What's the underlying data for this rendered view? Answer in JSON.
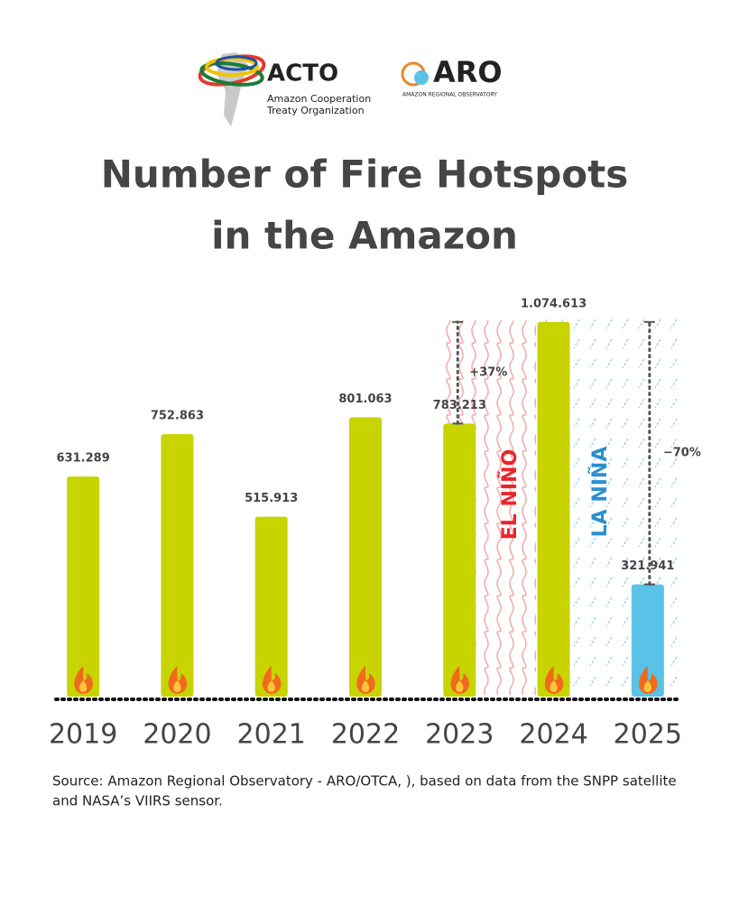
{
  "header": {
    "logo1": {
      "name": "ACTO",
      "subtitle1": "Amazon Cooperation",
      "subtitle2": "Treaty Organization"
    },
    "logo2": {
      "name": "ARO",
      "subtitle": "AMAZON REGIONAL OBSERVATORY"
    }
  },
  "chart_data": {
    "type": "bar",
    "title_lines": [
      "Number of Fire Hotspots",
      "in the Amazon"
    ],
    "categories": [
      "2019",
      "2020",
      "2021",
      "2022",
      "2023",
      "2024",
      "2025"
    ],
    "values": [
      631289,
      752863,
      515913,
      801063,
      783213,
      1074613,
      321941
    ],
    "value_labels": [
      "631.289",
      "752.863",
      "515.913",
      "801.063",
      "783.213",
      "1.074.613",
      "321.941"
    ],
    "colors": [
      "#c8d400",
      "#c8d400",
      "#c8d400",
      "#c8d400",
      "#c8d400",
      "#c8d400",
      "#5bc2e7"
    ],
    "ylim": [
      0,
      1100000
    ],
    "annotations": {
      "increase": "+37%",
      "decrease": "−70%",
      "el_nino": "EL NIÑO",
      "la_nina": "LA NIÑA"
    },
    "source": [
      "Source: Amazon Regional Observatory - ARO/OTCA, ), based on data from the SNPP satellite",
      "and NASA’s VIIRS sensor."
    ]
  }
}
